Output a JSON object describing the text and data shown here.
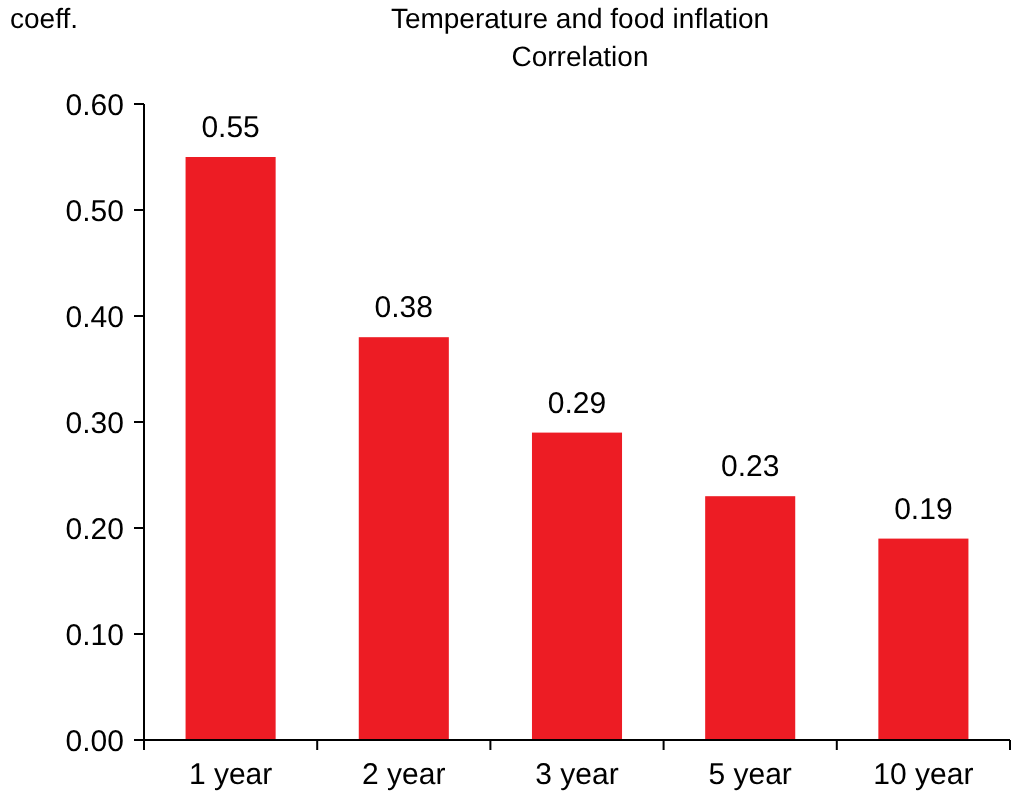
{
  "chart_data": {
    "type": "bar",
    "title": "Temperature and food inflation",
    "subtitle": "Correlation",
    "ylabel": "coeff.",
    "categories": [
      "1 year",
      "2 year",
      "3 year",
      "5 year",
      "10 year"
    ],
    "values": [
      0.55,
      0.38,
      0.29,
      0.23,
      0.19
    ],
    "color": "#ed1c24",
    "data_labels": true,
    "ylim": [
      0,
      0.6
    ],
    "yticks": [
      {
        "value": 0,
        "label": "0.00"
      },
      {
        "value": 0.1,
        "label": "0.10"
      },
      {
        "value": 0.2,
        "label": "0.20"
      },
      {
        "value": 0.3,
        "label": "0.30"
      },
      {
        "value": 0.4,
        "label": "0.40"
      },
      {
        "value": 0.5,
        "label": "0.50"
      },
      {
        "value": 0.6,
        "label": "0.60"
      }
    ],
    "grid": false
  }
}
